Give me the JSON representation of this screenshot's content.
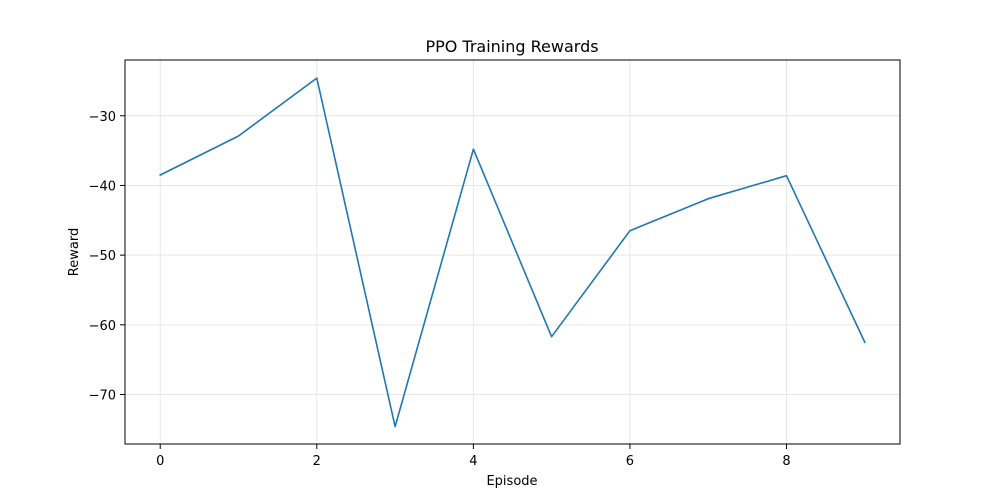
{
  "chart_data": {
    "type": "line",
    "title": "PPO Training Rewards",
    "xlabel": "Episode",
    "ylabel": "Reward",
    "x": [
      0,
      1,
      2,
      3,
      4,
      5,
      6,
      7,
      8,
      9
    ],
    "series": [
      {
        "values": [
          -38.5,
          -32.9,
          -24.6,
          -74.6,
          -34.8,
          -61.7,
          -46.5,
          -41.9,
          -38.6,
          -62.5
        ]
      }
    ],
    "xlim": [
      -0.45,
      9.45
    ],
    "ylim": [
      -77.1,
      -22.0
    ],
    "xticks": [
      0,
      2,
      4,
      6,
      8
    ],
    "yticks": [
      -70,
      -60,
      -50,
      -40,
      -30
    ],
    "xtick_labels": [
      "0",
      "2",
      "4",
      "6",
      "8"
    ],
    "ytick_labels": [
      "−70",
      "−60",
      "−50",
      "−40",
      "−30"
    ],
    "grid": true,
    "line_color": "#1f77b4",
    "grid_color": "#e6e6e6"
  }
}
